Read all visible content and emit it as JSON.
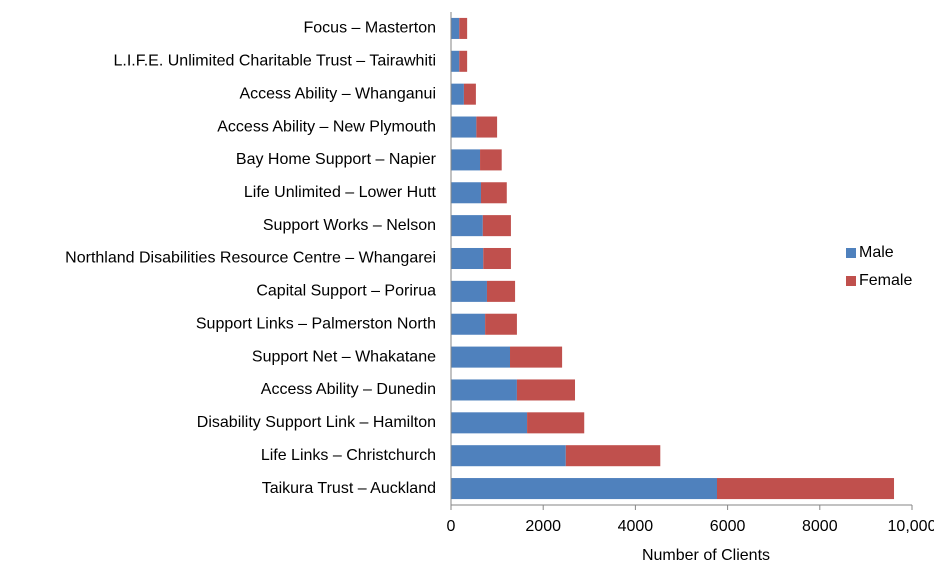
{
  "chart_data": {
    "type": "stacked_bar_horizontal",
    "categories": [
      "Focus – Masterton",
      "L.I.F.E. Unlimited Charitable Trust – Tairawhiti",
      "Access Ability – Whanganui",
      "Access Ability – New Plymouth",
      "Bay Home Support – Napier",
      "Life Unlimited – Lower Hutt",
      "Support Works – Nelson",
      "Northland Disabilities Resource Centre – Whangarei",
      "Capital Support – Porirua",
      "Support Links – Palmerston North",
      "Support Net – Whakatane",
      "Access Ability – Dunedin",
      "Disability Support Link – Hamilton",
      "Life Links – Christchurch",
      "Taikura Trust – Auckland"
    ],
    "series": [
      {
        "name": "Male",
        "color": "#4f81bd",
        "values": [
          180,
          180,
          280,
          550,
          630,
          650,
          690,
          700,
          780,
          740,
          1280,
          1430,
          1650,
          2490,
          5770
        ]
      },
      {
        "name": "Female",
        "color": "#c0504d",
        "values": [
          170,
          170,
          260,
          450,
          470,
          560,
          610,
          600,
          610,
          690,
          1130,
          1260,
          1240,
          2050,
          3840
        ]
      }
    ],
    "x_label": "Number of Clients",
    "xlim": [
      0,
      10000
    ],
    "xticks": [
      0,
      2000,
      4000,
      6000,
      8000,
      {
        "value": 10000,
        "label": "10,000"
      }
    ],
    "grid": false,
    "legend": "right"
  }
}
